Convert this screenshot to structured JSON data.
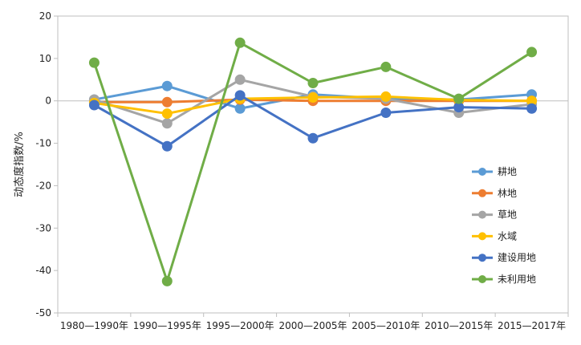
{
  "chart_data": {
    "type": "line",
    "categories": [
      "1980—1990年",
      "1990—1995年",
      "1995—2000年",
      "2000—2005年",
      "2005—2010年",
      "2010—2015年",
      "2015—2017年"
    ],
    "ylabel": "动态度指数/%",
    "ylim": [
      -50,
      20
    ],
    "yticks": [
      20,
      10,
      0,
      -10,
      -20,
      -30,
      -40,
      -50
    ],
    "legend_position": "right",
    "series": [
      {
        "name": "耕地",
        "color": "#5b9bd5",
        "values": [
          0.3,
          3.5,
          -1.8,
          1.5,
          0.5,
          0.3,
          1.5
        ]
      },
      {
        "name": "林地",
        "color": "#ed7d31",
        "values": [
          -0.3,
          -0.3,
          0.3,
          0.0,
          0.0,
          0.0,
          0.0
        ]
      },
      {
        "name": "草地",
        "color": "#a5a5a5",
        "values": [
          0.3,
          -5.3,
          5.0,
          1.0,
          0.5,
          -2.8,
          -0.8
        ]
      },
      {
        "name": "水域",
        "color": "#ffc000",
        "values": [
          -0.5,
          -3.0,
          0.5,
          0.8,
          1.0,
          0.2,
          0.0
        ]
      },
      {
        "name": "建设用地",
        "color": "#4472c4",
        "values": [
          -1.0,
          -10.7,
          1.3,
          -8.8,
          -2.8,
          -1.5,
          -1.8
        ]
      },
      {
        "name": "未利用地",
        "color": "#70ad47",
        "values": [
          9.0,
          -42.5,
          13.7,
          4.2,
          8.0,
          0.5,
          11.5
        ]
      }
    ]
  }
}
